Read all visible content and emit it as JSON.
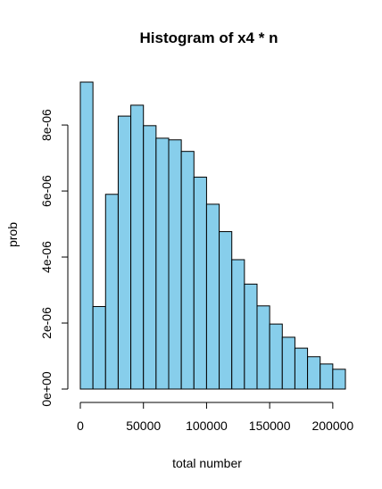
{
  "chart_data": {
    "type": "bar",
    "title": "Histogram of x4 * n",
    "xlabel": "total number",
    "ylabel": "prob",
    "bin_edges": [
      0,
      10000,
      20000,
      30000,
      40000,
      50000,
      60000,
      70000,
      80000,
      90000,
      100000,
      110000,
      120000,
      130000,
      140000,
      150000,
      160000,
      170000,
      180000,
      190000,
      200000,
      210000
    ],
    "values": [
      9.3e-06,
      2.5e-06,
      5.9e-06,
      8.27e-06,
      8.6e-06,
      7.98e-06,
      7.6e-06,
      7.55e-06,
      7.2e-06,
      6.42e-06,
      5.6e-06,
      4.77e-06,
      3.92e-06,
      3.18e-06,
      2.52e-06,
      1.97e-06,
      1.57e-06,
      1.24e-06,
      9.8e-07,
      7.6e-07,
      6e-07
    ],
    "xlim": [
      0,
      210000
    ],
    "ylim": [
      0,
      9.3e-06
    ],
    "x_ticks": [
      0,
      50000,
      100000,
      150000,
      200000
    ],
    "x_tick_labels": [
      "0",
      "50000",
      "100000",
      "150000",
      "200000"
    ],
    "y_ticks": [
      0,
      2e-06,
      4e-06,
      6e-06,
      8e-06
    ],
    "y_tick_labels": [
      "0e+00",
      "2e-06",
      "4e-06",
      "6e-06",
      "8e-06"
    ],
    "bar_color": "#87ceeb",
    "grid": false
  }
}
